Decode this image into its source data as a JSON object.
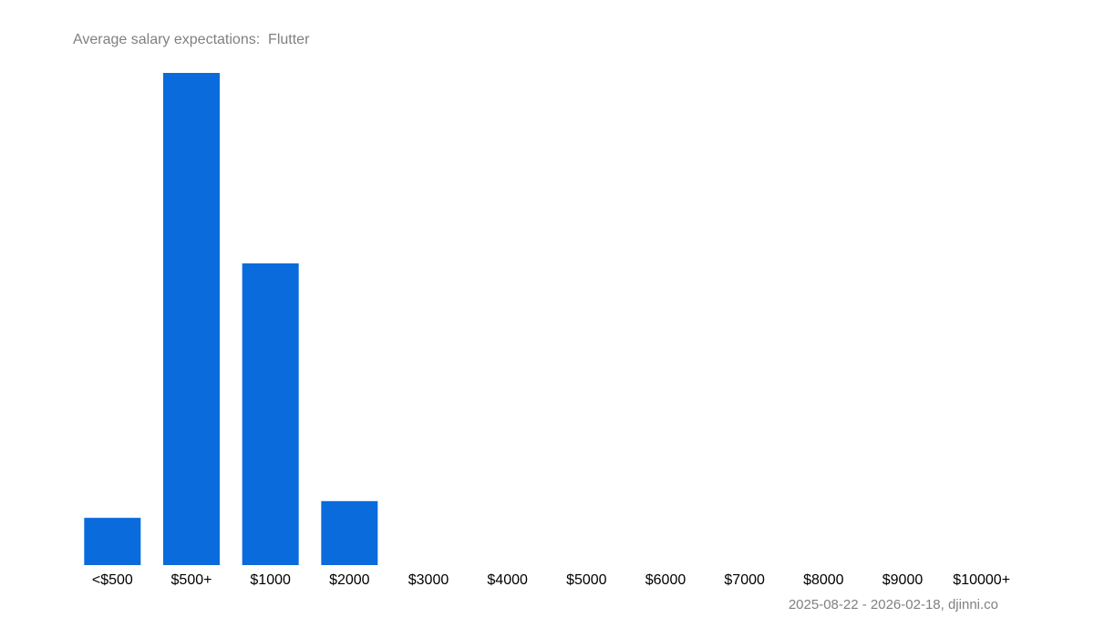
{
  "chart_data": {
    "type": "bar",
    "title": "Average salary expectations:  Flutter",
    "source": "2025-08-22 - 2026-02-18, djinni.co",
    "categories": [
      "<$500",
      "$500+",
      "$1000",
      "$2000",
      "$3000",
      "$4000",
      "$5000",
      "$6000",
      "$7000",
      "$8000",
      "$9000",
      "$10000+"
    ],
    "values": [
      9.6,
      100,
      61.3,
      13,
      0,
      0,
      0,
      0,
      0,
      0,
      0,
      0
    ],
    "color": "#0a6bdc"
  }
}
